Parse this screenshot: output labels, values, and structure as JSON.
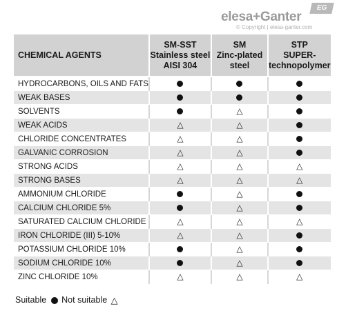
{
  "brand": {
    "logo_text": "elesa+Ganter",
    "badge": "EG",
    "copyright": "© Copyright | elesa-ganter.com"
  },
  "table": {
    "header_agent": "CHEMICAL AGENTS",
    "columns": [
      {
        "line1": "SM-SST",
        "line2": "Stainless steel",
        "line3": "AISI 304"
      },
      {
        "line1": "SM",
        "line2": "Zinc-plated",
        "line3": "steel"
      },
      {
        "line1": "STP",
        "line2": "SUPER-",
        "line3": "technopolymer"
      }
    ],
    "rows": [
      {
        "agent": "HYDROCARBONS, OILS AND FATS",
        "marks": [
          "suitable",
          "suitable",
          "suitable"
        ]
      },
      {
        "agent": "WEAK BASES",
        "marks": [
          "suitable",
          "suitable",
          "suitable"
        ]
      },
      {
        "agent": "SOLVENTS",
        "marks": [
          "suitable",
          "not-suitable",
          "suitable"
        ]
      },
      {
        "agent": "WEAK ACIDS",
        "marks": [
          "not-suitable",
          "not-suitable",
          "suitable"
        ]
      },
      {
        "agent": "CHLORIDE CONCENTRATES",
        "marks": [
          "not-suitable",
          "not-suitable",
          "suitable"
        ]
      },
      {
        "agent": "GALVANIC CORROSION",
        "marks": [
          "not-suitable",
          "not-suitable",
          "suitable"
        ]
      },
      {
        "agent": "STRONG ACIDS",
        "marks": [
          "not-suitable",
          "not-suitable",
          "not-suitable"
        ]
      },
      {
        "agent": "STRONG BASES",
        "marks": [
          "not-suitable",
          "not-suitable",
          "not-suitable"
        ]
      },
      {
        "agent": "AMMONIUM CHLORIDE",
        "marks": [
          "suitable",
          "not-suitable",
          "suitable"
        ]
      },
      {
        "agent": "CALCIUM CHLORIDE 5%",
        "marks": [
          "suitable",
          "not-suitable",
          "suitable"
        ]
      },
      {
        "agent": "SATURATED CALCIUM CHLORIDE",
        "marks": [
          "not-suitable",
          "not-suitable",
          "not-suitable"
        ]
      },
      {
        "agent": "IRON CHLORIDE (III) 5-10%",
        "marks": [
          "not-suitable",
          "not-suitable",
          "suitable"
        ]
      },
      {
        "agent": "POTASSIUM CHLORIDE 10%",
        "marks": [
          "suitable",
          "not-suitable",
          "suitable"
        ]
      },
      {
        "agent": "SODIUM CHLORIDE 10%",
        "marks": [
          "suitable",
          "not-suitable",
          "suitable"
        ]
      },
      {
        "agent": "ZINC CHLORIDE 10%",
        "marks": [
          "not-suitable",
          "not-suitable",
          "not-suitable"
        ]
      }
    ]
  },
  "legend": {
    "suitable_label": "Suitable",
    "not_suitable_label": "Not suitable"
  },
  "icons": {
    "suitable": "filled-circle-icon",
    "not_suitable": "outline-triangle-icon"
  },
  "colors": {
    "header_bg": "#d2d2d2",
    "stripe_bg": "#e4e4e4",
    "logo_gray": "#9a9a9a"
  }
}
